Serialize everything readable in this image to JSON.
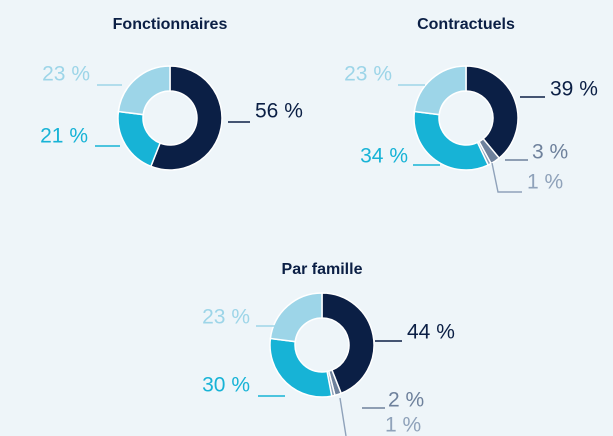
{
  "chart_data": [
    {
      "type": "pie",
      "title": "Fonctionnaires",
      "categories": [
        null,
        null,
        null
      ],
      "values": [
        56,
        21,
        23
      ],
      "value_labels": [
        "56 %",
        "21 %",
        "23 %"
      ],
      "colors": [
        "#0b1f45",
        "#17b3d6",
        "#9dd5e8"
      ]
    },
    {
      "type": "pie",
      "title": "Contractuels",
      "categories": [
        null,
        null,
        null,
        null,
        null
      ],
      "values": [
        39,
        3,
        1,
        34,
        23
      ],
      "value_labels": [
        "39 %",
        "3 %",
        "1 %",
        "34 %",
        "23 %"
      ],
      "colors": [
        "#0b1f45",
        "#6e819c",
        "#8fa2ba",
        "#17b3d6",
        "#9dd5e8"
      ]
    },
    {
      "type": "pie",
      "title": "Par famille",
      "categories": [
        null,
        null,
        null,
        null,
        null
      ],
      "values": [
        44,
        2,
        1,
        30,
        23
      ],
      "value_labels": [
        "44 %",
        "2 %",
        "1 %",
        "30 %",
        "23 %"
      ],
      "colors": [
        "#0b1f45",
        "#6e819c",
        "#8fa2ba",
        "#17b3d6",
        "#9dd5e8"
      ]
    }
  ]
}
